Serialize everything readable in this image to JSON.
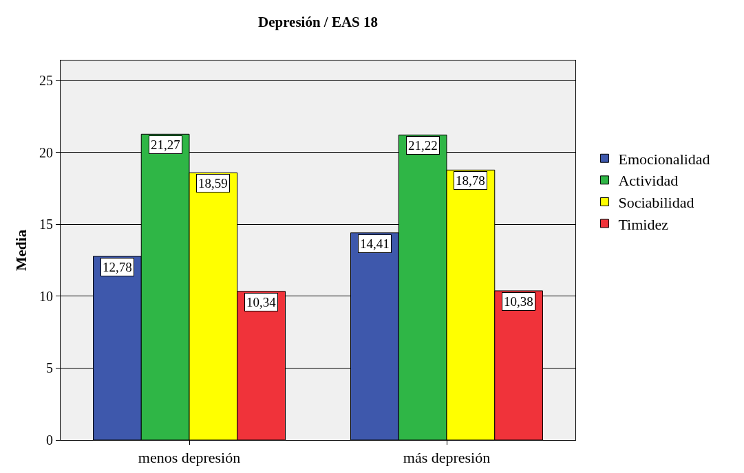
{
  "chart_data": {
    "type": "bar",
    "title": "Depresión / EAS 18",
    "ylabel": "Media",
    "categories": [
      "menos depresión",
      "más depresión"
    ],
    "series": [
      {
        "name": "Emocionalidad",
        "color": "#3e58ac",
        "values": [
          12.78,
          14.41
        ],
        "value_labels": [
          "12,78",
          "14,41"
        ]
      },
      {
        "name": "Actividad",
        "color": "#2fb646",
        "values": [
          21.27,
          21.22
        ],
        "value_labels": [
          "21,27",
          "21,22"
        ]
      },
      {
        "name": "Sociabilidad",
        "color": "#ffff00",
        "values": [
          18.59,
          18.78
        ],
        "value_labels": [
          "18,59",
          "18,78"
        ]
      },
      {
        "name": "Timidez",
        "color": "#f0333a",
        "values": [
          10.34,
          10.38
        ],
        "value_labels": [
          "10,34",
          "10,38"
        ]
      }
    ],
    "ylim": [
      0,
      26.4
    ],
    "yticks": [
      0,
      5,
      10,
      15,
      20,
      25
    ],
    "grid": "y",
    "legend": "right"
  }
}
